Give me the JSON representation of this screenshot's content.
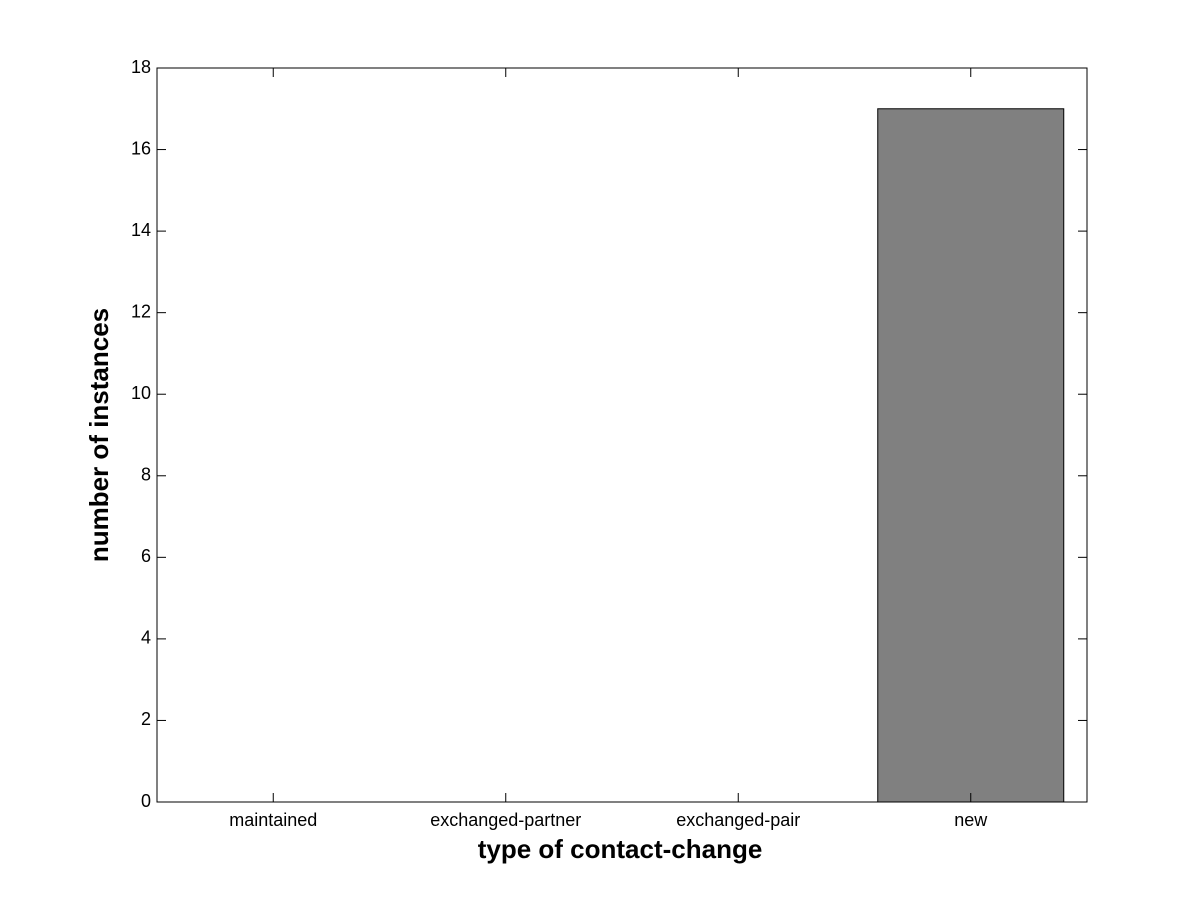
{
  "chart_data": {
    "type": "bar",
    "xlabel": "type of contact-change",
    "ylabel": "number of instances",
    "categories": [
      "maintained",
      "exchanged-partner",
      "exchanged-pair",
      "new"
    ],
    "values": [
      0,
      0,
      0,
      17
    ],
    "color": "#808080",
    "ylim": [
      0,
      18
    ],
    "yticks": [
      0,
      2,
      4,
      6,
      8,
      10,
      12,
      14,
      16,
      18
    ],
    "grid": false
  }
}
